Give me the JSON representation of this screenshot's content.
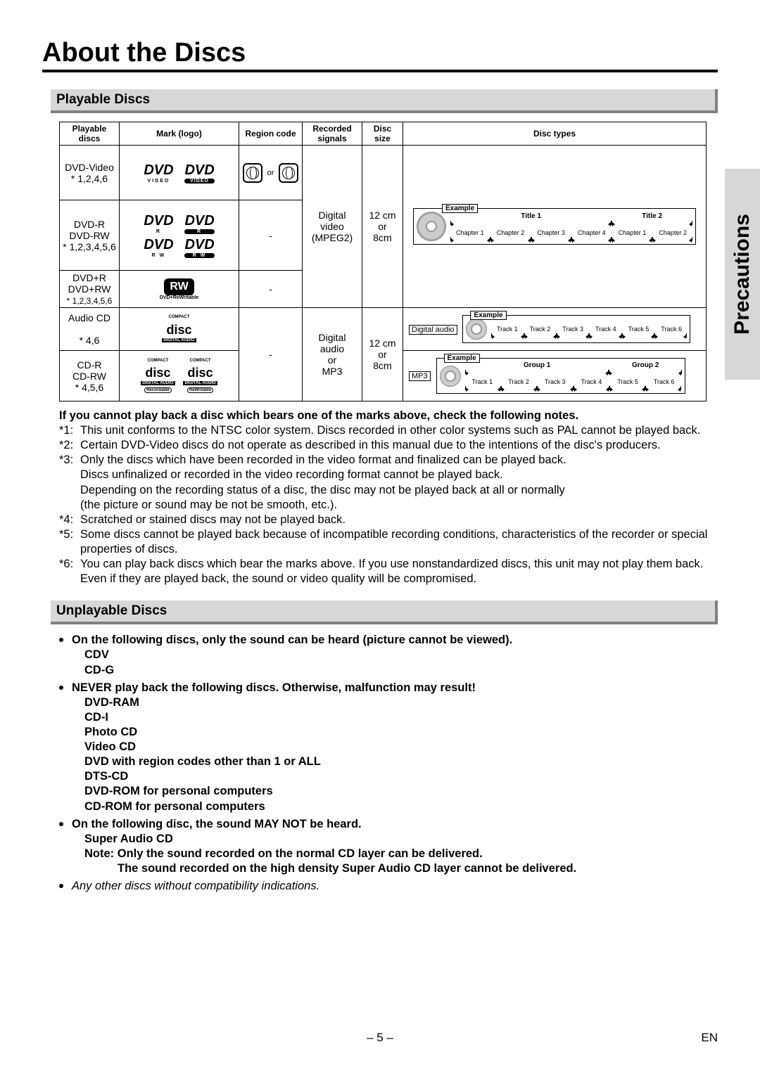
{
  "page": {
    "title": "About the Discs",
    "side_tab": "Precautions",
    "page_number": "– 5 –",
    "lang": "EN"
  },
  "sections": {
    "playable": "Playable Discs",
    "unplayable": "Unplayable Discs"
  },
  "table": {
    "headers": {
      "playable_discs": "Playable\ndiscs",
      "mark": "Mark (logo)",
      "region": "Region code",
      "recorded": "Recorded\nsignals",
      "size": "Disc size",
      "types": "Disc types"
    },
    "rows": {
      "dvd_video": {
        "name": "DVD-Video",
        "note": "* 1,2,4,6",
        "region_or": "or"
      },
      "dvd_r": {
        "name": "DVD-R\nDVD-RW",
        "note": "* 1,2,3,4,5,6",
        "region": "-"
      },
      "dvd_plus": {
        "name": "DVD+R\nDVD+RW",
        "note": "* 1,2,3,4,5,6",
        "region": "-",
        "logo_sub": "DVD+ReWritable"
      },
      "audio_cd": {
        "name": "Audio CD",
        "note": "* 4,6"
      },
      "cd_r": {
        "name": "CD-R\nCD-RW",
        "note": "* 4,5,6"
      }
    },
    "signals": {
      "video": "Digital video\n(MPEG2)",
      "audio": "Digital audio\nor\nMP3",
      "region_dash": "-"
    },
    "size": {
      "dvd": "12 cm\nor\n8cm",
      "cd": "12 cm\nor\n8cm"
    },
    "examples": {
      "dvd": {
        "label": "Example",
        "title1": "Title 1",
        "title2": "Title 2",
        "segs": [
          "Chapter 1",
          "Chapter 2",
          "Chapter 3",
          "Chapter 4",
          "Chapter 1",
          "Chapter 2"
        ]
      },
      "audio": {
        "badge": "Digital audio",
        "label": "Example",
        "segs": [
          "Track 1",
          "Track 2",
          "Track 3",
          "Track 4",
          "Track 5",
          "Track 6"
        ]
      },
      "mp3": {
        "badge": "MP3",
        "label": "Example",
        "group1": "Group 1",
        "group2": "Group 2",
        "segs": [
          "Track 1",
          "Track 2",
          "Track 3",
          "Track 4",
          "Track 5",
          "Track 6"
        ]
      }
    }
  },
  "notes": {
    "lead": "If you cannot play back a disc which bears one of the marks above, check the following notes.",
    "items": [
      {
        "tag": "*1:",
        "text": "This unit conforms to the NTSC color system. Discs recorded in other color systems such as PAL cannot be played back."
      },
      {
        "tag": "*2:",
        "text": "Certain DVD-Video discs do not operate as described in this manual due to the intentions of the disc's producers."
      },
      {
        "tag": "*3:",
        "text": "Only the discs which have been recorded in the video format and finalized can be played back.\nDiscs unfinalized or recorded in the video recording format cannot be played back.\nDepending on the recording status of a disc, the disc may not be played back at all or normally\n(the picture or sound may be not be smooth, etc.)."
      },
      {
        "tag": "*4:",
        "text": "Scratched or stained discs may not be played back."
      },
      {
        "tag": "*5:",
        "text": "Some discs cannot be played back because of incompatible recording conditions, characteristics of the recorder or special properties of discs."
      },
      {
        "tag": "*6:",
        "text": "You can play back discs which bear the marks above. If you use nonstandardized discs, this unit may not play them back. Even if they are played back, the sound or video quality will be compromised."
      }
    ]
  },
  "unplayable": {
    "b1": {
      "lead": "On the following discs, only the sound can be heard (picture cannot be viewed).",
      "items": [
        "CDV",
        "CD-G"
      ]
    },
    "b2": {
      "lead": "NEVER play back the following discs. Otherwise, malfunction may result!",
      "items": [
        "DVD-RAM",
        "CD-I",
        "Photo CD",
        "Video CD",
        "DVD with region codes other than 1 or ALL",
        "DTS-CD",
        "DVD-ROM for personal computers",
        "CD-ROM for personal computers"
      ]
    },
    "b3": {
      "lead": "On the following disc, the sound MAY NOT be heard.",
      "item": "Super Audio CD",
      "note1": "Note: Only the sound recorded on the normal CD layer can be delivered.",
      "note2": "The sound recorded on the high density Super Audio CD layer cannot be delivered."
    },
    "b4": "Any other discs without compatibility indications."
  }
}
